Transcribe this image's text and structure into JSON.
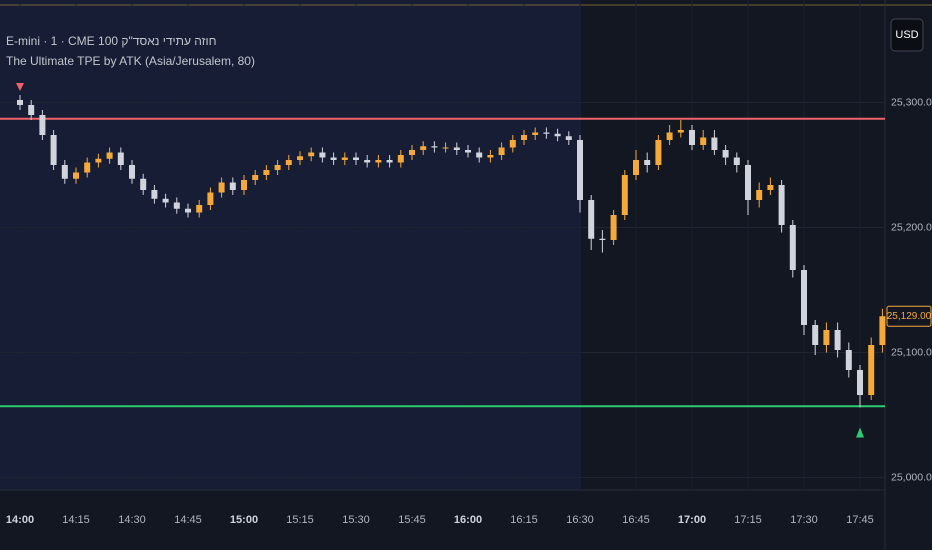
{
  "chart_data": {
    "type": "candlestick",
    "title": "E-mini · 1 · CME חוזה עתידי נאסד\"ק 100",
    "subtitle": "The Ultimate TPE by ATK (Asia/Jerusalem, 80)",
    "currency": "USD",
    "categories": [
      "14:00",
      "14:03",
      "14:06",
      "14:09",
      "14:12",
      "14:15",
      "14:18",
      "14:21",
      "14:24",
      "14:27",
      "14:30",
      "14:33",
      "14:36",
      "14:39",
      "14:42",
      "14:45",
      "14:48",
      "14:51",
      "14:54",
      "14:57",
      "15:00",
      "15:03",
      "15:06",
      "15:09",
      "15:12",
      "15:15",
      "15:18",
      "15:21",
      "15:24",
      "15:27",
      "15:30",
      "15:33",
      "15:36",
      "15:39",
      "15:42",
      "15:45",
      "15:48",
      "15:51",
      "15:54",
      "15:57",
      "16:00",
      "16:03",
      "16:06",
      "16:09",
      "16:12",
      "16:15",
      "16:18",
      "16:21",
      "16:24",
      "16:27",
      "16:30",
      "16:33",
      "16:36",
      "16:39",
      "16:42",
      "16:45",
      "16:48",
      "16:51",
      "16:54",
      "16:57",
      "17:00",
      "17:03",
      "17:06",
      "17:09",
      "17:12",
      "17:15",
      "17:18",
      "17:21",
      "17:24",
      "17:27",
      "17:30",
      "17:33",
      "17:36",
      "17:39",
      "17:42",
      "17:45",
      "17:48",
      "17:51"
    ],
    "open": [
      25302,
      25298,
      25290,
      25274,
      25250,
      25239,
      25244,
      25252,
      25255,
      25260,
      25250,
      25239,
      25230,
      25223,
      25220,
      25215,
      25212,
      25218,
      25228,
      25236,
      25230,
      25238,
      25242,
      25246,
      25250,
      25254,
      25257,
      25260,
      25256,
      25254,
      25256,
      25254,
      25252,
      25254,
      25252,
      25258,
      25262,
      25265,
      25264,
      25264,
      25262,
      25260,
      25256,
      25258,
      25264,
      25270,
      25274,
      25276,
      25275,
      25273,
      25270,
      25222,
      25191,
      25190,
      25210,
      25242,
      25254,
      25250,
      25270,
      25276,
      25278,
      25266,
      25272,
      25262,
      25256,
      25250,
      25222,
      25230,
      25234,
      25202,
      25166,
      25122,
      25106,
      25118,
      25102,
      25086,
      25066,
      25106
    ],
    "high": [
      25306,
      25302,
      25294,
      25278,
      25254,
      25248,
      25256,
      25259,
      25264,
      25264,
      25254,
      25243,
      25234,
      25227,
      25224,
      25219,
      25222,
      25232,
      25240,
      25240,
      25242,
      25246,
      25250,
      25254,
      25258,
      25261,
      25264,
      25264,
      25260,
      25260,
      25260,
      25258,
      25258,
      25258,
      25262,
      25266,
      25269,
      25269,
      25268,
      25268,
      25266,
      25264,
      25262,
      25268,
      25274,
      25278,
      25280,
      25280,
      25279,
      25277,
      25274,
      25226,
      25198,
      25214,
      25246,
      25262,
      25260,
      25274,
      25282,
      25286,
      25282,
      25278,
      25278,
      25266,
      25260,
      25254,
      25236,
      25240,
      25238,
      25206,
      25170,
      25126,
      25124,
      25124,
      25108,
      25090,
      25112,
      25135
    ],
    "low": [
      25294,
      25286,
      25270,
      25246,
      25235,
      25235,
      25240,
      25248,
      25251,
      25246,
      25235,
      25226,
      25219,
      25216,
      25211,
      25208,
      25208,
      25214,
      25224,
      25226,
      25226,
      25234,
      25238,
      25242,
      25246,
      25250,
      25253,
      25252,
      25250,
      25250,
      25250,
      25248,
      25248,
      25248,
      25248,
      25254,
      25258,
      25260,
      25260,
      25258,
      25256,
      25252,
      25252,
      25254,
      25260,
      25266,
      25270,
      25271,
      25269,
      25266,
      25212,
      25182,
      25180,
      25186,
      25206,
      25238,
      25244,
      25246,
      25266,
      25272,
      25262,
      25262,
      25258,
      25250,
      25244,
      25210,
      25216,
      25226,
      25196,
      25160,
      25114,
      25098,
      25100,
      25096,
      25080,
      25056,
      25062,
      25100
    ],
    "close": [
      25298,
      25290,
      25274,
      25250,
      25239,
      25244,
      25252,
      25255,
      25260,
      25250,
      25239,
      25230,
      25223,
      25220,
      25215,
      25212,
      25218,
      25228,
      25236,
      25230,
      25238,
      25242,
      25246,
      25250,
      25254,
      25257,
      25260,
      25256,
      25254,
      25256,
      25254,
      25252,
      25254,
      25252,
      25258,
      25262,
      25265,
      25264,
      25264,
      25262,
      25260,
      25256,
      25258,
      25264,
      25270,
      25274,
      25276,
      25275,
      25273,
      25270,
      25222,
      25191,
      25190,
      25210,
      25242,
      25254,
      25250,
      25270,
      25276,
      25278,
      25266,
      25272,
      25262,
      25256,
      25250,
      25222,
      25230,
      25234,
      25202,
      25166,
      25122,
      25106,
      25118,
      25102,
      25086,
      25066,
      25106,
      25129
    ],
    "up_color": "#f5a93a",
    "down_color": "#d1d4dc",
    "levels": [
      {
        "value": 25287,
        "color": "#f0626a"
      },
      {
        "value": 25057,
        "color": "#2ecc71"
      }
    ],
    "last_price": {
      "value": 25129,
      "label": "25,129.00"
    },
    "ylim": [
      24990,
      25382
    ],
    "yticks": [
      {
        "value": 25000,
        "label": "25,000.00"
      },
      {
        "value": 25100,
        "label": "25,100.00"
      },
      {
        "value": 25200,
        "label": "25,200.00"
      },
      {
        "value": 25300,
        "label": "25,300.00"
      }
    ],
    "xticks": [
      "14:00",
      "14:15",
      "14:30",
      "14:45",
      "15:00",
      "15:15",
      "15:30",
      "15:45",
      "16:00",
      "16:15",
      "16:30",
      "16:45",
      "17:00",
      "17:15",
      "17:30",
      "17:45"
    ],
    "grid": true
  }
}
